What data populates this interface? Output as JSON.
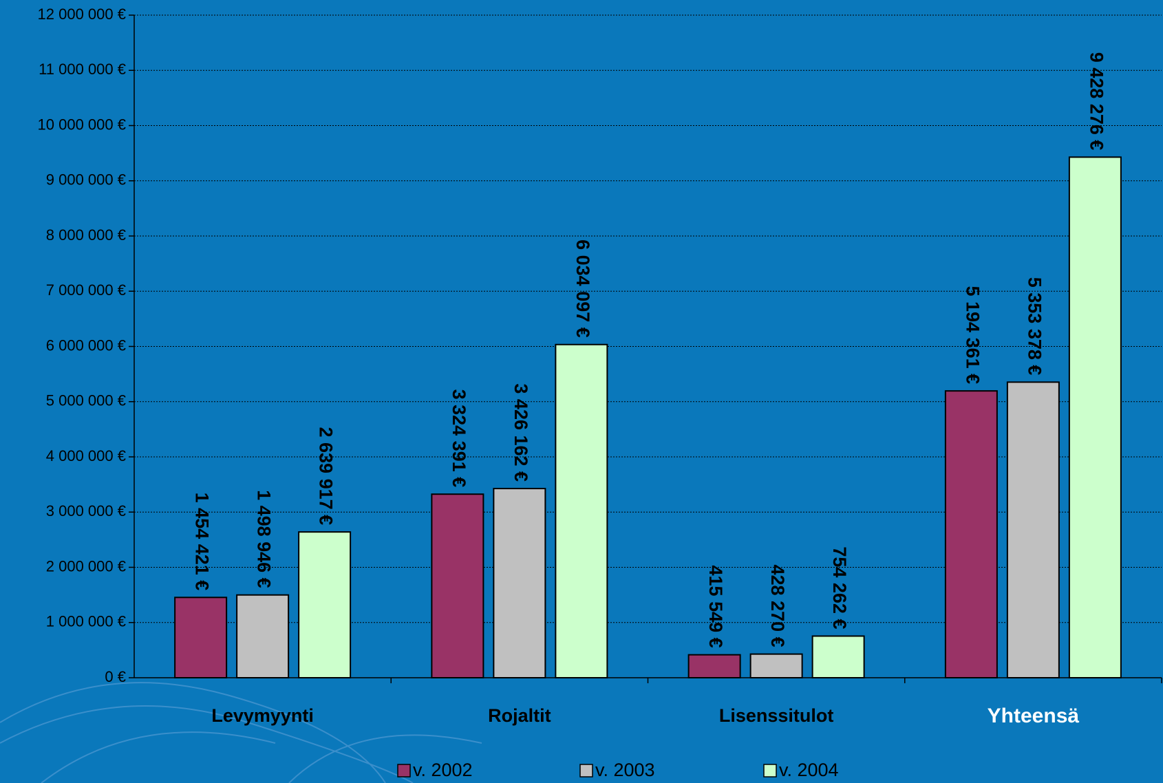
{
  "chart_data": {
    "type": "bar",
    "categories": [
      "Levymyynti",
      "Rojaltit",
      "Lisenssitulot",
      "Yhteensä"
    ],
    "series": [
      {
        "name": "v. 2002",
        "color": "#993366",
        "values": [
          1454421,
          3324391,
          415549,
          5194361
        ],
        "value_labels": [
          "1 454 421 €",
          "3 324 391 €",
          "415 549 €",
          "5 194 361 €"
        ]
      },
      {
        "name": "v. 2003",
        "color": "#c0c0c0",
        "values": [
          1498946,
          3426162,
          428270,
          5353378
        ],
        "value_labels": [
          "1 498 946 €",
          "3 426 162 €",
          "428 270 €",
          "5 353 378 €"
        ]
      },
      {
        "name": "v. 2004",
        "color": "#ccffcc",
        "values": [
          2639917,
          6034097,
          754262,
          9428276
        ],
        "value_labels": [
          "2 639 917 €",
          "6 034 097 €",
          "754 262 €",
          "9 428 276 €"
        ]
      }
    ],
    "ylim": [
      0,
      12000000
    ],
    "yticks": [
      {
        "value": 0,
        "label": "0 €"
      },
      {
        "value": 1000000,
        "label": "1 000 000 €"
      },
      {
        "value": 2000000,
        "label": "2 000 000 €"
      },
      {
        "value": 3000000,
        "label": "3 000 000 €"
      },
      {
        "value": 4000000,
        "label": "4 000 000 €"
      },
      {
        "value": 5000000,
        "label": "5 000 000 €"
      },
      {
        "value": 6000000,
        "label": "6 000 000 €"
      },
      {
        "value": 7000000,
        "label": "7 000 000 €"
      },
      {
        "value": 8000000,
        "label": "8 000 000 €"
      },
      {
        "value": 9000000,
        "label": "9 000 000 €"
      },
      {
        "value": 10000000,
        "label": "10 000 000 €"
      },
      {
        "value": 11000000,
        "label": "11 000 000 €"
      },
      {
        "value": 12000000,
        "label": "12 000 000 €"
      }
    ],
    "grid": true
  }
}
